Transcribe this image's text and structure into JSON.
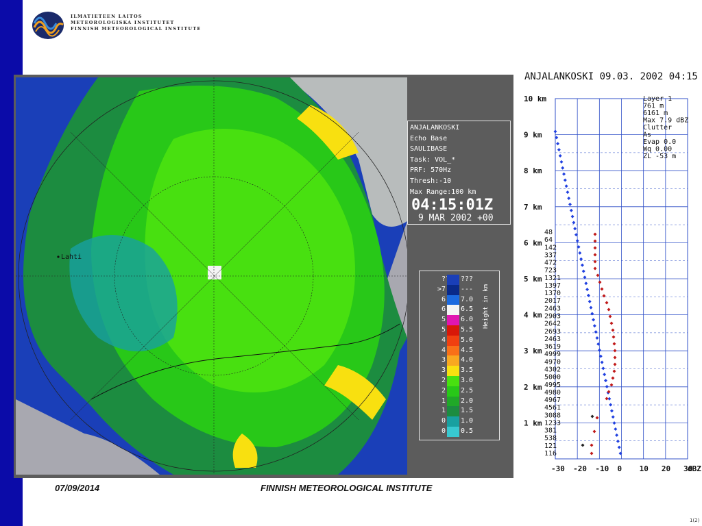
{
  "header": {
    "org_lines": [
      "ILMATIETEEN LAITOS",
      "METEOROLOGISKA INSTITUTET",
      "FINNISH METEOROLOGICAL INSTITUTE"
    ]
  },
  "radar": {
    "city_label": "Lahti",
    "info": {
      "station": "ANJALANKOSKI",
      "product": "Echo Base",
      "product_code": "SAULIBASE",
      "task": "Task: VOL_*",
      "prf": "PRF: 570Hz",
      "thresh": "Thresh:-10",
      "max_range": "Max Range:100 km",
      "time": "04:15:01Z",
      "date": "9 MAR 2002 +00"
    },
    "legend": {
      "axis_label": "Height in km",
      "rows": [
        {
          "lo": "???",
          "hi": "???",
          "color": "#1a3fb8"
        },
        {
          "lo": ">7.0",
          "hi": "---",
          "color": "#0a2a8a"
        },
        {
          "lo": "6.5",
          "hi": "7.0",
          "color": "#1c6ae0"
        },
        {
          "lo": "6.0",
          "hi": "6.5",
          "color": "#f4f4f4"
        },
        {
          "lo": "5.5",
          "hi": "6.0",
          "color": "#e016b0"
        },
        {
          "lo": "5.0",
          "hi": "5.5",
          "color": "#d81808"
        },
        {
          "lo": "4.5",
          "hi": "5.0",
          "color": "#f04010"
        },
        {
          "lo": "4.0",
          "hi": "4.5",
          "color": "#f87018"
        },
        {
          "lo": "3.5",
          "hi": "4.0",
          "color": "#f8a820"
        },
        {
          "lo": "3.0",
          "hi": "3.5",
          "color": "#f8e010"
        },
        {
          "lo": "2.5",
          "hi": "3.0",
          "color": "#48e010"
        },
        {
          "lo": "2.0",
          "hi": "2.5",
          "color": "#28c818"
        },
        {
          "lo": "1.5",
          "hi": "2.0",
          "color": "#20a828"
        },
        {
          "lo": "1.0",
          "hi": "1.5",
          "color": "#1c8c40"
        },
        {
          "lo": "0.5",
          "hi": "1.0",
          "color": "#18a0a0"
        },
        {
          "lo": "0.0",
          "hi": "0.5",
          "color": "#38c8d0"
        }
      ]
    }
  },
  "profile": {
    "title": "ANJALANKOSKI 09.03. 2002 04:15",
    "info_lines": [
      "Layer 1",
      "761 m",
      "6161 m",
      "Max 7.9 dBZ",
      "Clutter",
      "As",
      "Evap 0.0",
      "Wq 0.00",
      "ZL -53 m"
    ],
    "y_ticks": [
      "10 km",
      "9 km",
      "8 km",
      "7 km",
      "6 km",
      "5 km",
      "4 km",
      "3 km",
      "2 km",
      "1 km"
    ],
    "x_ticks": [
      "-30",
      "-20",
      "-10",
      "0",
      "10",
      "20",
      "30",
      "dBZ"
    ],
    "counts": [
      "48",
      "64",
      "142",
      "337",
      "472",
      "723",
      "1321",
      "1397",
      "1370",
      "2017",
      "2463",
      "2903",
      "2642",
      "2693",
      "2463",
      "3619",
      "4999",
      "4970",
      "4302",
      "5000",
      "4995",
      "4980",
      "4967",
      "4561",
      "3088",
      "1233",
      "381",
      "538",
      "121",
      "116"
    ]
  },
  "footer": {
    "date": "07/09/2014",
    "org": "FINNISH METEOROLOGICAL INSTITUTE",
    "page": "1(2)"
  }
}
